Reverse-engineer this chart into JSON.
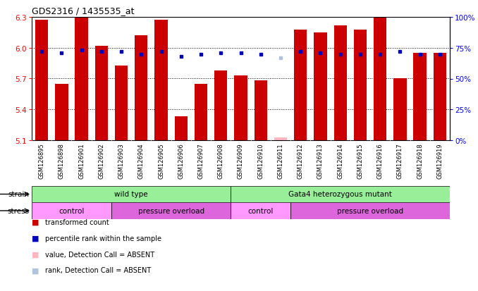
{
  "title": "GDS2316 / 1435535_at",
  "samples": [
    "GSM126895",
    "GSM126898",
    "GSM126901",
    "GSM126902",
    "GSM126903",
    "GSM126904",
    "GSM126905",
    "GSM126906",
    "GSM126907",
    "GSM126908",
    "GSM126909",
    "GSM126910",
    "GSM126911",
    "GSM126912",
    "GSM126913",
    "GSM126914",
    "GSM126915",
    "GSM126916",
    "GSM126917",
    "GSM126918",
    "GSM126919"
  ],
  "bar_values": [
    6.27,
    5.65,
    6.29,
    6.02,
    5.83,
    6.12,
    6.27,
    5.33,
    5.65,
    5.78,
    5.73,
    5.68,
    5.13,
    6.18,
    6.15,
    6.22,
    6.18,
    6.29,
    5.7,
    5.95,
    5.95
  ],
  "absent_bar": [
    false,
    false,
    false,
    false,
    false,
    false,
    false,
    false,
    false,
    false,
    false,
    false,
    true,
    false,
    false,
    false,
    false,
    false,
    false,
    false,
    false
  ],
  "absent_dot": [
    false,
    false,
    false,
    false,
    false,
    false,
    false,
    false,
    false,
    false,
    false,
    false,
    true,
    false,
    false,
    false,
    false,
    false,
    false,
    false,
    false
  ],
  "percentile_values": [
    72,
    71,
    73,
    72,
    72,
    70,
    72,
    68,
    70,
    71,
    71,
    70,
    67,
    72,
    71,
    70,
    70,
    70,
    72,
    70,
    70
  ],
  "ymin": 5.1,
  "ymax": 6.3,
  "yticks": [
    5.1,
    5.4,
    5.7,
    6.0,
    6.3
  ],
  "y2ticks": [
    0,
    25,
    50,
    75,
    100
  ],
  "bar_color": "#CC0000",
  "blue_color": "#0000BB",
  "absent_bar_color": "#FFB6C1",
  "absent_dot_color": "#B0C4DE",
  "bg_color": "#FFFFFF",
  "strain_wild_color": "#99EE99",
  "strain_mutant_color": "#99EE99",
  "stress_control_color": "#FF99FF",
  "stress_pressure_color": "#DD66DD",
  "xticklabel_bg": "#CCCCCC",
  "legend_items": [
    {
      "color": "#CC0000",
      "label": "transformed count"
    },
    {
      "color": "#0000BB",
      "label": "percentile rank within the sample"
    },
    {
      "color": "#FFB6C1",
      "label": "value, Detection Call = ABSENT"
    },
    {
      "color": "#B0C4DE",
      "label": "rank, Detection Call = ABSENT"
    }
  ]
}
